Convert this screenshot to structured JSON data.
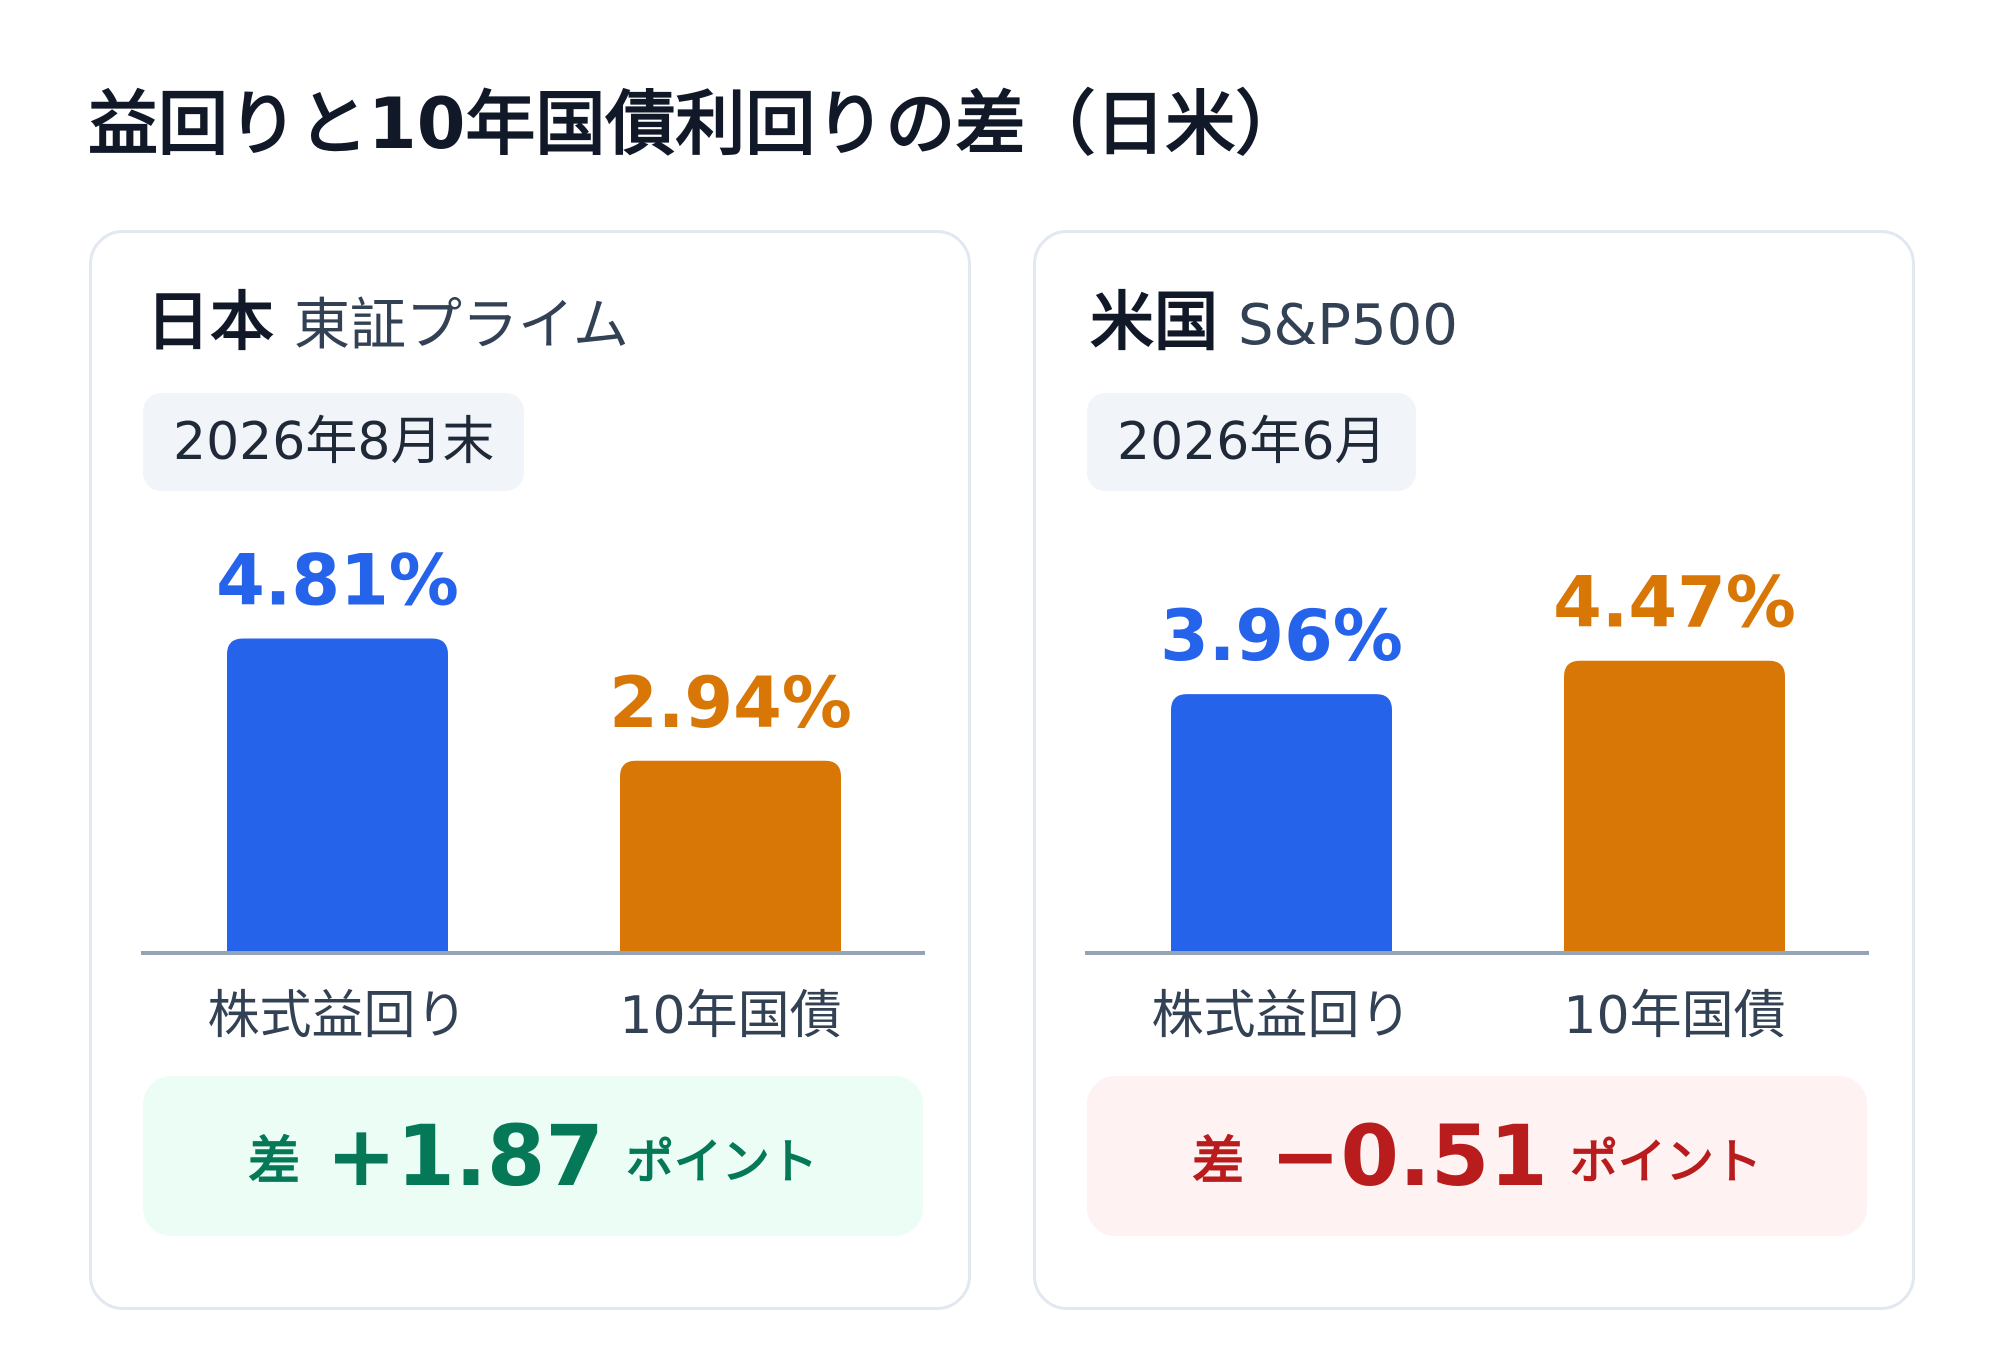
{
  "title": "益回りと10年国債利回りの差（日米）",
  "colors": {
    "earnings_yield": "#2563eb",
    "bond_yield": "#d97706",
    "positive": "#047857",
    "negative": "#b91c1c",
    "axis": "#94a3b8",
    "category_text": "#334155"
  },
  "chart_data": [
    {
      "type": "bar",
      "market": "日本",
      "index": "東証プライム",
      "date": "2026年8月末",
      "categories": [
        "株式益回り",
        "10年国債"
      ],
      "values": [
        4.81,
        2.94
      ],
      "value_labels": [
        "4.81%",
        "2.94%"
      ],
      "bar_colors": [
        "#2563eb",
        "#d97706"
      ],
      "ylim": [
        0,
        5.2
      ],
      "difference": {
        "label": "差",
        "value": "+1.87",
        "unit": "ポイント",
        "sign": "positive"
      }
    },
    {
      "type": "bar",
      "market": "米国",
      "index": "S&P500",
      "date": "2026年6月",
      "categories": [
        "株式益回り",
        "10年国債"
      ],
      "values": [
        3.96,
        4.47
      ],
      "value_labels": [
        "3.96%",
        "4.47%"
      ],
      "bar_colors": [
        "#2563eb",
        "#d97706"
      ],
      "ylim": [
        0,
        5.2
      ],
      "difference": {
        "label": "差",
        "value": "−0.51",
        "unit": "ポイント",
        "sign": "negative"
      }
    }
  ]
}
